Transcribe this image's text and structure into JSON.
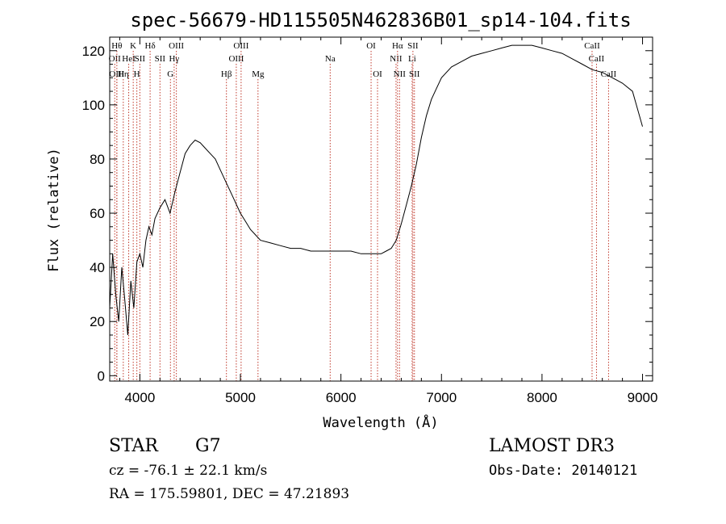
{
  "header": {
    "title": "spec-56679-HD115505N462836B01_sp14-104.fits"
  },
  "info": {
    "object_class": "STAR",
    "subclass": "G7",
    "survey": "LAMOST DR3",
    "redshift": "cz = -76.1 ± 22.1 km/s",
    "obs_date": "Obs-Date: 20140121",
    "coords": "RA = 175.59801, DEC =  47.21893"
  },
  "chart_data": {
    "type": "line",
    "title": "spec-56679-HD115505N462836B01_sp14-104.fits",
    "xlabel": "Wavelength (Å)",
    "ylabel": "Flux (relative)",
    "xlim": [
      3700,
      9100
    ],
    "ylim": [
      -2,
      125
    ],
    "xticks": [
      4000,
      5000,
      6000,
      7000,
      8000,
      9000
    ],
    "yticks": [
      0,
      20,
      40,
      60,
      80,
      100,
      120
    ],
    "grid": false,
    "line_color": "#000000",
    "marker_color": "#c0392b",
    "series": [
      {
        "x": [
          3700,
          3730,
          3760,
          3790,
          3820,
          3850,
          3880,
          3910,
          3940,
          3970,
          4000,
          4030,
          4060,
          4090,
          4120,
          4150,
          4200,
          4250,
          4300,
          4350,
          4400,
          4450,
          4500,
          4550,
          4600,
          4650,
          4700,
          4750,
          4800,
          4850,
          4900,
          4950,
          5000,
          5050,
          5100,
          5150,
          5200,
          5300,
          5400,
          5500,
          5600,
          5700,
          5800,
          5900,
          6000,
          6100,
          6200,
          6300,
          6350,
          6400,
          6450,
          6500,
          6550,
          6600,
          6650,
          6700,
          6750,
          6800,
          6850,
          6900,
          6950,
          7000,
          7100,
          7200,
          7300,
          7400,
          7500,
          7600,
          7700,
          7800,
          7900,
          8000,
          8100,
          8200,
          8300,
          8400,
          8500,
          8600,
          8700,
          8800,
          8900,
          9000
        ],
        "y": [
          25,
          45,
          30,
          20,
          40,
          28,
          15,
          35,
          25,
          42,
          45,
          40,
          50,
          55,
          52,
          58,
          62,
          65,
          60,
          68,
          75,
          82,
          85,
          87,
          86,
          84,
          82,
          80,
          76,
          72,
          68,
          64,
          60,
          57,
          54,
          52,
          50,
          49,
          48,
          47,
          47,
          46,
          46,
          46,
          46,
          46,
          45,
          45,
          45,
          45,
          46,
          47,
          50,
          56,
          63,
          70,
          78,
          88,
          96,
          102,
          106,
          110,
          114,
          116,
          118,
          119,
          120,
          121,
          122,
          122,
          122,
          121,
          120,
          119,
          117,
          115,
          113,
          112,
          110,
          108,
          105,
          92
        ]
      }
    ],
    "line_markers": [
      {
        "x": 3750,
        "row": 1,
        "label": "OII"
      },
      {
        "x": 3771,
        "row": 0,
        "label": "Hθ"
      },
      {
        "x": 3771,
        "row": 2,
        "label": "OIII"
      },
      {
        "x": 3835,
        "row": 2,
        "label": "Hη"
      },
      {
        "x": 3889,
        "row": 1,
        "label": "HeI"
      },
      {
        "x": 3934,
        "row": 0,
        "label": "K"
      },
      {
        "x": 3970,
        "row": 2,
        "label": "H"
      },
      {
        "x": 4000,
        "row": 1,
        "label": "SII"
      },
      {
        "x": 4102,
        "row": 0,
        "label": "Hδ"
      },
      {
        "x": 4200,
        "row": 1,
        "label": "SII"
      },
      {
        "x": 4304,
        "row": 2,
        "label": "G"
      },
      {
        "x": 4341,
        "row": 1,
        "label": "Hγ"
      },
      {
        "x": 4363,
        "row": 0,
        "label": "OIII"
      },
      {
        "x": 4861,
        "row": 2,
        "label": "Hβ"
      },
      {
        "x": 4959,
        "row": 1,
        "label": "OIII"
      },
      {
        "x": 5007,
        "row": 0,
        "label": "OIII"
      },
      {
        "x": 5175,
        "row": 2,
        "label": "Mg"
      },
      {
        "x": 5893,
        "row": 1,
        "label": "Na"
      },
      {
        "x": 6300,
        "row": 0,
        "label": "OI"
      },
      {
        "x": 6364,
        "row": 2,
        "label": "OI"
      },
      {
        "x": 6548,
        "row": 1,
        "label": "NII"
      },
      {
        "x": 6563,
        "row": 0,
        "label": "Hα"
      },
      {
        "x": 6583,
        "row": 2,
        "label": "NII"
      },
      {
        "x": 6708,
        "row": 1,
        "label": "Li"
      },
      {
        "x": 6716,
        "row": 0,
        "label": "SII"
      },
      {
        "x": 6731,
        "row": 2,
        "label": "SII"
      },
      {
        "x": 8498,
        "row": 0,
        "label": "CaII"
      },
      {
        "x": 8542,
        "row": 1,
        "label": "CaII"
      },
      {
        "x": 8662,
        "row": 2,
        "label": "CaII"
      }
    ]
  }
}
